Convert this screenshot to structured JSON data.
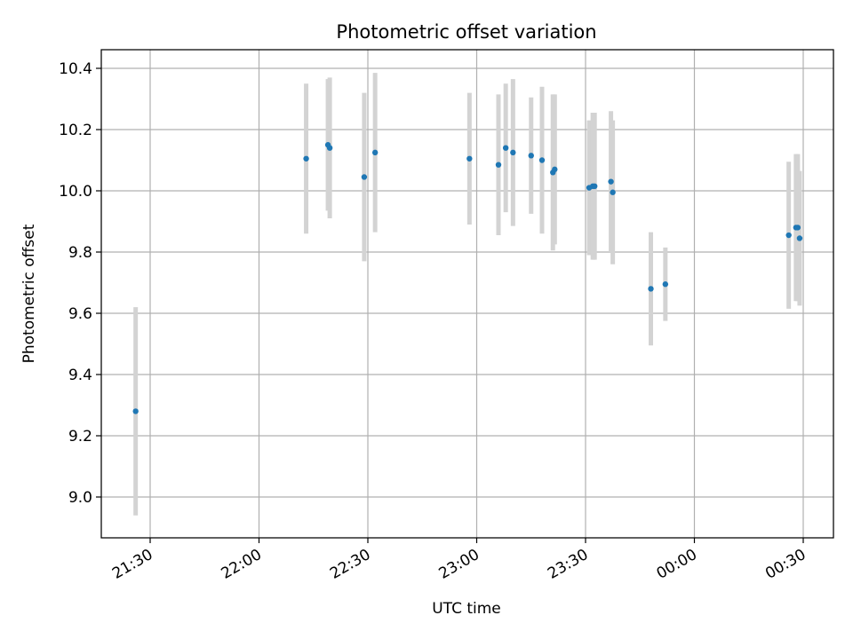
{
  "chart_data": {
    "type": "scatter",
    "title": "Photometric offset variation",
    "xlabel": "UTC time",
    "ylabel": "Photometric offset",
    "x_tick_labels": [
      "21:30",
      "22:00",
      "22:30",
      "23:00",
      "23:30",
      "00:00",
      "00:30"
    ],
    "y_tick_labels": [
      "9.0",
      "9.2",
      "9.4",
      "9.6",
      "9.8",
      "10.0",
      "10.2",
      "10.4"
    ],
    "ylim": [
      8.87,
      10.46
    ],
    "grid": true,
    "legend": "none",
    "colors": {
      "point": "#1f77b4",
      "errorbar": "#d3d3d3",
      "grid": "#b0b0b0"
    },
    "series": [
      {
        "points": [
          {
            "x": "21:26",
            "y": 9.28,
            "err": 0.34
          },
          {
            "x": "22:13",
            "y": 10.105,
            "err": 0.245
          },
          {
            "x": "22:19",
            "y": 10.15,
            "err": 0.215
          },
          {
            "x": "22:19.5",
            "y": 10.14,
            "err": 0.23
          },
          {
            "x": "22:29",
            "y": 10.045,
            "err": 0.275
          },
          {
            "x": "22:32",
            "y": 10.125,
            "err": 0.26
          },
          {
            "x": "22:58",
            "y": 10.105,
            "err": 0.215
          },
          {
            "x": "23:06",
            "y": 10.085,
            "err": 0.23
          },
          {
            "x": "23:08",
            "y": 10.14,
            "err": 0.21
          },
          {
            "x": "23:10",
            "y": 10.125,
            "err": 0.24
          },
          {
            "x": "23:15",
            "y": 10.115,
            "err": 0.19
          },
          {
            "x": "23:18",
            "y": 10.1,
            "err": 0.24
          },
          {
            "x": "23:21",
            "y": 10.06,
            "err": 0.255
          },
          {
            "x": "23:21.5",
            "y": 10.07,
            "err": 0.245
          },
          {
            "x": "23:31",
            "y": 10.01,
            "err": 0.22
          },
          {
            "x": "23:32",
            "y": 10.015,
            "err": 0.24
          },
          {
            "x": "23:32.5",
            "y": 10.015,
            "err": 0.24
          },
          {
            "x": "23:37",
            "y": 10.03,
            "err": 0.23
          },
          {
            "x": "23:37.5",
            "y": 9.995,
            "err": 0.235
          },
          {
            "x": "23:48",
            "y": 9.68,
            "err": 0.185
          },
          {
            "x": "23:52",
            "y": 9.695,
            "err": 0.12
          },
          {
            "x": "00:26",
            "y": 9.855,
            "err": 0.24
          },
          {
            "x": "00:28",
            "y": 9.88,
            "err": 0.24
          },
          {
            "x": "00:28.5",
            "y": 9.88,
            "err": 0.24
          },
          {
            "x": "00:29",
            "y": 9.845,
            "err": 0.22
          }
        ]
      }
    ]
  }
}
